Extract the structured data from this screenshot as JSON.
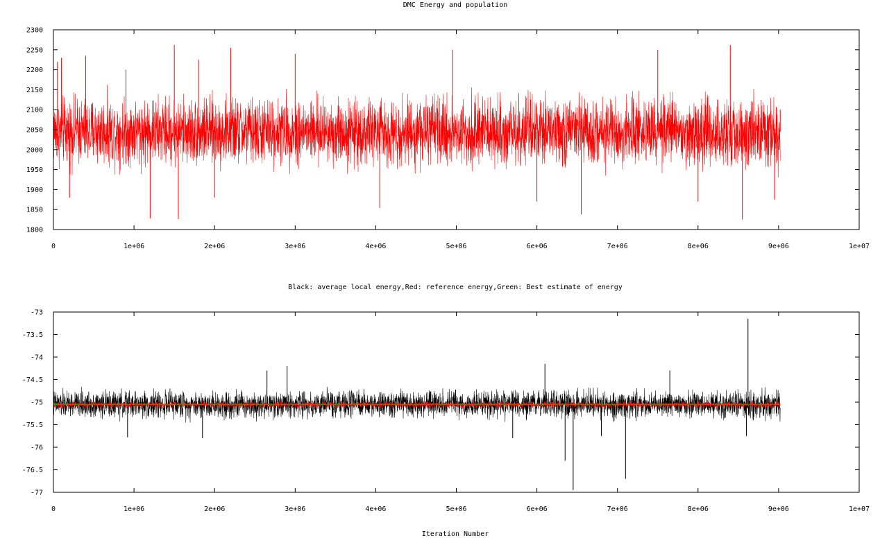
{
  "chart_data": [
    {
      "type": "line",
      "title": "DMC Energy and population",
      "xlabel": "",
      "ylabel": "",
      "xlim": [
        0,
        10000000
      ],
      "ylim": [
        1800,
        2300
      ],
      "x_ticks": [
        0,
        1000000,
        2000000,
        3000000,
        4000000,
        5000000,
        6000000,
        7000000,
        8000000,
        9000000,
        10000000
      ],
      "x_tick_labels": [
        "0",
        "1e+06",
        "2e+06",
        "3e+06",
        "4e+06",
        "5e+06",
        "6e+06",
        "7e+06",
        "8e+06",
        "9e+06",
        "1e+07"
      ],
      "y_ticks": [
        1800,
        1850,
        1900,
        1950,
        2000,
        2050,
        2100,
        2150,
        2200,
        2250,
        2300
      ],
      "y_tick_labels": [
        "1800",
        "1850",
        "1900",
        "1950",
        "2000",
        "2050",
        "2100",
        "2150",
        "2200",
        "2250",
        "2300"
      ],
      "grid": false,
      "legend": "none",
      "series": [
        {
          "color": "#ff0000",
          "x_range": [
            0,
            9020000
          ],
          "mean": 2045,
          "typical_band": [
            1940,
            2150
          ],
          "points": [
            [
              0,
              1900
            ],
            [
              50000,
              2220
            ],
            [
              100000,
              2230
            ],
            [
              200000,
              1880
            ],
            [
              400000,
              2235
            ],
            [
              900000,
              2200
            ],
            [
              1200000,
              1828
            ],
            [
              1500000,
              2262
            ],
            [
              1550000,
              1826
            ],
            [
              1800000,
              2225
            ],
            [
              2000000,
              1880
            ],
            [
              2200000,
              2255
            ],
            [
              3000000,
              2240
            ],
            [
              4050000,
              1854
            ],
            [
              4950000,
              2250
            ],
            [
              6000000,
              1870
            ],
            [
              6550000,
              1838
            ],
            [
              7500000,
              2250
            ],
            [
              8000000,
              1870
            ],
            [
              8400000,
              2262
            ],
            [
              8550000,
              1825
            ],
            [
              8950000,
              1875
            ],
            [
              9020000,
              2100
            ]
          ]
        }
      ]
    },
    {
      "type": "line",
      "title": "Black: average local energy,Red: reference energy,Green: Best estimate of energy",
      "xlabel": "Iteration Number",
      "ylabel": "",
      "xlim": [
        0,
        10000000
      ],
      "ylim": [
        -77,
        -73
      ],
      "x_ticks": [
        0,
        1000000,
        2000000,
        3000000,
        4000000,
        5000000,
        6000000,
        7000000,
        8000000,
        9000000,
        10000000
      ],
      "x_tick_labels": [
        "0",
        "1e+06",
        "2e+06",
        "3e+06",
        "4e+06",
        "5e+06",
        "6e+06",
        "7e+06",
        "8e+06",
        "9e+06",
        "1e+07"
      ],
      "y_ticks": [
        -77,
        -76.5,
        -76,
        -75.5,
        -75,
        -74.5,
        -74,
        -73.5,
        -73
      ],
      "y_tick_labels": [
        "-77",
        "-76.5",
        "-76",
        "-75.5",
        "-75",
        "-74.5",
        "-74",
        "-73.5",
        "-73"
      ],
      "grid": false,
      "legend": "none",
      "series": [
        {
          "color": "#000000",
          "x_range": [
            0,
            9020000
          ],
          "mean": -75.05,
          "typical_band": [
            -75.35,
            -74.6
          ],
          "points": [
            [
              920000,
              -75.78
            ],
            [
              1850000,
              -75.8
            ],
            [
              2650000,
              -74.3
            ],
            [
              2900000,
              -74.2
            ],
            [
              5700000,
              -75.8
            ],
            [
              6100000,
              -74.15
            ],
            [
              6350000,
              -76.3
            ],
            [
              6450000,
              -76.95
            ],
            [
              6800000,
              -75.75
            ],
            [
              7100000,
              -76.7
            ],
            [
              7650000,
              -74.3
            ],
            [
              8600000,
              -75.75
            ],
            [
              8620000,
              -73.15
            ]
          ]
        },
        {
          "color": "#ff0000",
          "x_range": [
            0,
            9020000
          ],
          "mean": -75.05,
          "typical_band": [
            -75.12,
            -74.97
          ],
          "points": []
        },
        {
          "color": "#00c000",
          "x_range": [
            0,
            9020000
          ],
          "mean": -75.05,
          "typical_band": [
            -75.06,
            -75.04
          ],
          "points": [
            [
              0,
              -75.25
            ],
            [
              30000,
              -75.0
            ]
          ]
        }
      ]
    }
  ]
}
